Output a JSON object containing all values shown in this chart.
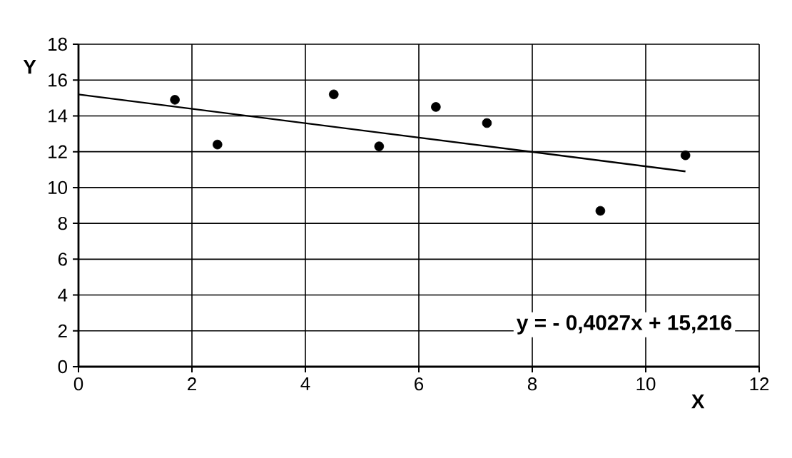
{
  "chart_data": {
    "type": "scatter",
    "xlabel": "X",
    "ylabel": "Y",
    "xlim": [
      0,
      12
    ],
    "ylim": [
      0,
      18
    ],
    "xticks": [
      0,
      2,
      4,
      6,
      8,
      10,
      12
    ],
    "yticks": [
      0,
      2,
      4,
      6,
      8,
      10,
      12,
      14,
      16,
      18
    ],
    "grid": true,
    "marker": "circle",
    "series": [
      {
        "color": "#000000",
        "x": [
          1.7,
          2.45,
          4.5,
          5.3,
          6.3,
          7.2,
          9.2,
          10.7
        ],
        "values": [
          14.9,
          12.4,
          15.2,
          12.3,
          14.5,
          13.6,
          8.7,
          11.8
        ]
      },
      {
        "type": "line",
        "color": "#000000",
        "marker": "none",
        "line_style": "solid",
        "x": [
          0,
          10.7
        ],
        "values": [
          15.2,
          10.9
        ]
      }
    ],
    "annotations": [
      "y = - 0,4027x + 15,216"
    ]
  }
}
